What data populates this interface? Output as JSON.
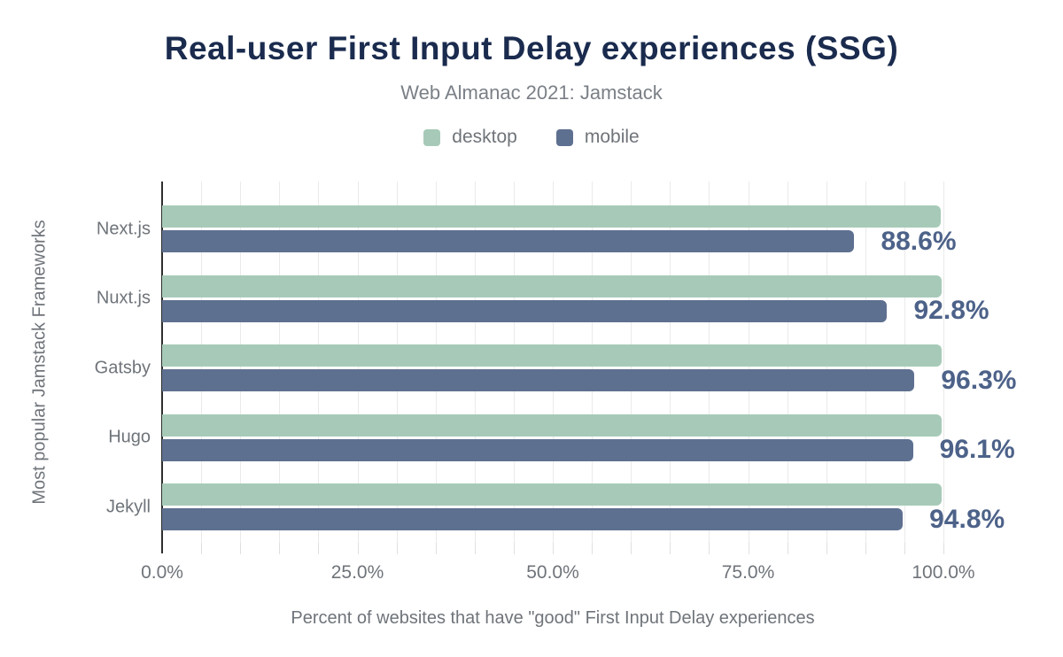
{
  "chart_data": {
    "type": "bar",
    "orientation": "horizontal",
    "title": "Real-user First Input Delay experiences (SSG)",
    "subtitle": "Web Almanac 2021: Jamstack",
    "xlabel": "Percent of websites that have \"good\" First Input Delay experiences",
    "ylabel": "Most popular Jamstack Frameworks",
    "categories": [
      "Next.js",
      "Nuxt.js",
      "Gatsby",
      "Hugo",
      "Jekyll"
    ],
    "series": [
      {
        "name": "desktop",
        "color": "#a7cab8",
        "values": [
          99.7,
          99.8,
          99.8,
          99.8,
          99.8
        ]
      },
      {
        "name": "mobile",
        "color": "#5e7090",
        "values": [
          88.6,
          92.8,
          96.3,
          96.1,
          94.8
        ]
      }
    ],
    "data_labels": {
      "series": "mobile",
      "labels": [
        "88.6%",
        "92.8%",
        "96.3%",
        "96.1%",
        "94.8%"
      ]
    },
    "x_ticks": [
      {
        "value": 0,
        "label": "0.0%"
      },
      {
        "value": 25,
        "label": "25.0%"
      },
      {
        "value": 50,
        "label": "50.0%"
      },
      {
        "value": 75,
        "label": "75.0%"
      },
      {
        "value": 100,
        "label": "100.0%"
      }
    ],
    "xlim": [
      0,
      100
    ],
    "gridline_step": 5,
    "grid": true,
    "legend_position": "top"
  },
  "colors": {
    "title": "#1a2b4e",
    "subtitle": "#7b8087",
    "axis_text": "#6f747a",
    "data_label": "#4d6289",
    "gridline": "#eaeaea",
    "tick": "#e0e0e0",
    "axis_line": "#2f2f2f",
    "background": "#ffffff"
  }
}
